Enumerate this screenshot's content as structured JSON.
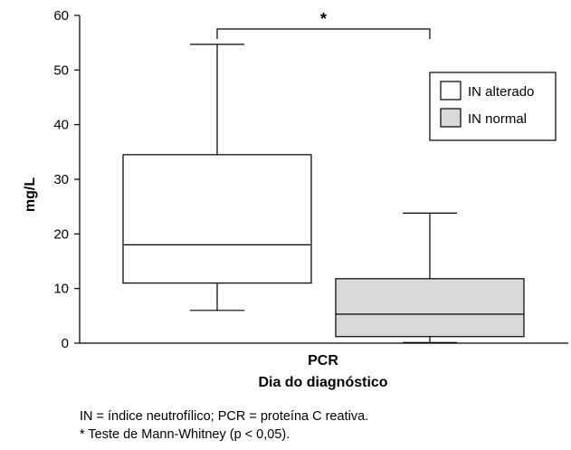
{
  "chart_data": {
    "type": "boxplot",
    "y_label": "mg/L",
    "x_category": "PCR",
    "x_label": "Dia do diagnóstico",
    "y_range": [
      0,
      60
    ],
    "y_ticks": [
      "0",
      "10",
      "20",
      "30",
      "40",
      "50",
      "60"
    ],
    "grid": false,
    "legend_position": "top-right",
    "series": [
      {
        "name": "IN alterado",
        "color": "#ffffff",
        "min": 6,
        "q1": 11,
        "median": 18,
        "q3": 34.5,
        "max": 54.7
      },
      {
        "name": "IN normal",
        "color": "#d9d9d9",
        "min": 0.1,
        "q1": 1.2,
        "median": 5.3,
        "q3": 11.8,
        "max": 23.8
      }
    ],
    "significance_marker": "*"
  },
  "footnotes": [
    "IN = índice neutrofílico; PCR = proteína C reativa.",
    "* Teste de Mann-Whitney (p < 0,05)."
  ]
}
